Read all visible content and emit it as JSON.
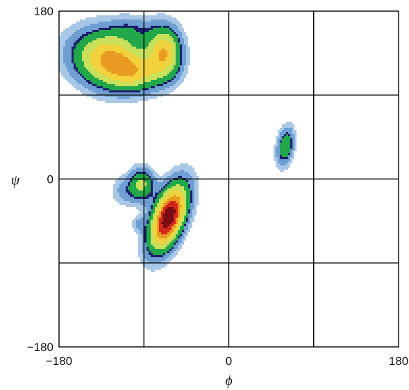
{
  "chart_data": {
    "type": "contour",
    "title": "",
    "xlabel": "ϕ",
    "ylabel": "ψ",
    "xlim": [
      -180,
      180
    ],
    "ylim": [
      -180,
      180
    ],
    "x_ticks": [
      -180,
      0,
      180
    ],
    "y_ticks": [
      -180,
      0,
      180
    ],
    "x_tick_labels": [
      "−180",
      "0",
      "180"
    ],
    "y_tick_labels": [
      "−180",
      "0",
      "180"
    ],
    "grid": true,
    "grid_step": 90,
    "levels": [
      {
        "level": 1,
        "color": "#a9c8e8"
      },
      {
        "level": 2,
        "color": "#6f9fd2"
      },
      {
        "level": 3,
        "color": "#1a1f6a"
      },
      {
        "level": 4,
        "color": "#22a84a"
      },
      {
        "level": 5,
        "color": "#c8e05a"
      },
      {
        "level": 6,
        "color": "#f2d23c"
      },
      {
        "level": 7,
        "color": "#e89a22"
      },
      {
        "level": 8,
        "color": "#d4281e"
      },
      {
        "level": 9,
        "color": "#7a0c14"
      }
    ],
    "regions": [
      {
        "name": "beta",
        "phi": -125,
        "psi": 128,
        "peak_level": 7
      },
      {
        "name": "polyII",
        "phi": -68,
        "psi": 137,
        "peak_level": 7
      },
      {
        "name": "alpha_right",
        "phi": -64,
        "psi": -41,
        "peak_level": 9
      },
      {
        "name": "alpha_left",
        "phi": 60,
        "psi": 35,
        "peak_level": 1
      }
    ]
  }
}
